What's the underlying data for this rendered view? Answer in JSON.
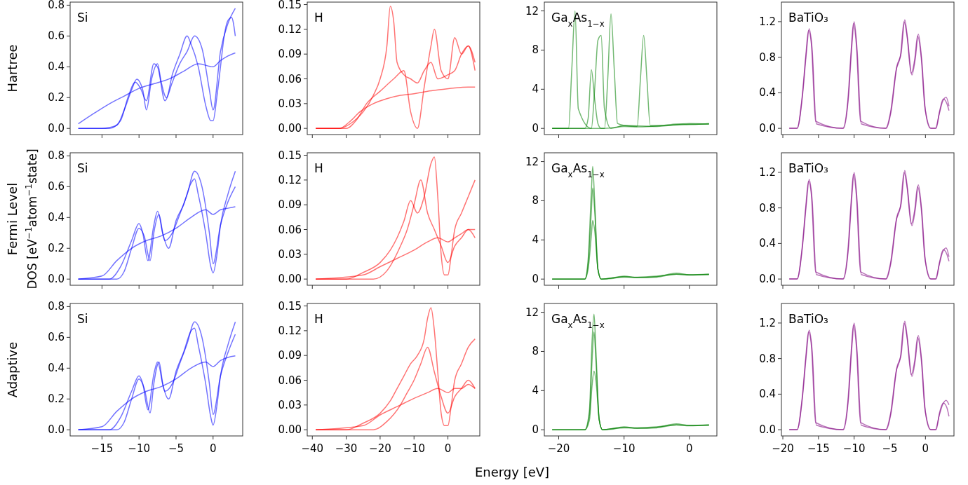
{
  "chart_data": [
    {
      "type": "line",
      "ylabel": "Hartree",
      "annotations": [
        "Si"
      ],
      "tick_labels": "y",
      "xlim": [
        -19.3,
        4.0
      ],
      "xticks": [
        -15,
        -10,
        -5,
        0
      ],
      "ylim": [
        -0.04,
        0.82
      ],
      "yticks": [
        {
          "value": 0,
          "label": "0.0"
        },
        {
          "value": 0.2,
          "label": "0.2"
        },
        {
          "value": 0.4,
          "label": "0.4"
        },
        {
          "value": 0.6,
          "label": "0.6"
        },
        {
          "value": 0.8,
          "label": "0.8"
        }
      ],
      "series": [
        {
          "color": "#0000ff",
          "x": [
            -18.2,
            -15,
            -13,
            -12,
            -11,
            -10.3,
            -9.5,
            -9,
            -8.3,
            -7.5,
            -7,
            -6.3,
            -5.5,
            -4.5,
            -3.5,
            -3,
            -2,
            -1,
            -0.3,
            0,
            0.5,
            1,
            1.5,
            2,
            2.5,
            3
          ],
          "values": [
            0,
            0,
            0.02,
            0.12,
            0.25,
            0.32,
            0.25,
            0.12,
            0.32,
            0.42,
            0.3,
            0.2,
            0.35,
            0.48,
            0.6,
            0.55,
            0.4,
            0.15,
            0.05,
            0.05,
            0.2,
            0.4,
            0.6,
            0.7,
            0.72,
            0.6
          ]
        },
        {
          "color": "#0000ff",
          "x": [
            -18.2,
            -16,
            -14,
            -12,
            -10,
            -8,
            -6,
            -4,
            -2,
            0,
            1,
            2,
            3
          ],
          "values": [
            0.03,
            0.1,
            0.16,
            0.21,
            0.26,
            0.29,
            0.32,
            0.37,
            0.42,
            0.4,
            0.44,
            0.47,
            0.49
          ]
        },
        {
          "color": "#0000ff",
          "x": [
            -18.2,
            -14,
            -12.5,
            -11.5,
            -10.5,
            -9.8,
            -9,
            -8,
            -7.5,
            -6.5,
            -5.5,
            -4.5,
            -3.5,
            -2.5,
            -1.5,
            -0.5,
            0,
            1,
            2,
            3
          ],
          "values": [
            0,
            0,
            0.05,
            0.2,
            0.3,
            0.26,
            0.18,
            0.42,
            0.4,
            0.18,
            0.3,
            0.42,
            0.5,
            0.6,
            0.52,
            0.25,
            0.12,
            0.5,
            0.68,
            0.78
          ]
        }
      ]
    },
    {
      "type": "line",
      "annotations": [
        "H"
      ],
      "tick_labels": "y",
      "xlim": [
        -41.5,
        9.4
      ],
      "xticks": [
        -40,
        -30,
        -20,
        -10,
        0
      ],
      "ylim": [
        -0.0075,
        0.153
      ],
      "yticks": [
        {
          "value": 0,
          "label": "0.00"
        },
        {
          "value": 0.03,
          "label": "0.03"
        },
        {
          "value": 0.06,
          "label": "0.06"
        },
        {
          "value": 0.09,
          "label": "0.09"
        },
        {
          "value": 0.12,
          "label": "0.12"
        },
        {
          "value": 0.15,
          "label": "0.15"
        }
      ],
      "series": [
        {
          "color": "#ff0000",
          "x": [
            -39,
            -32,
            -28,
            -25,
            -22,
            -20,
            -18,
            -17,
            -16,
            -15,
            -13,
            -11,
            -9,
            -7,
            -5,
            -3,
            0,
            2,
            4,
            6,
            8
          ],
          "values": [
            0,
            0,
            0.008,
            0.02,
            0.04,
            0.06,
            0.1,
            0.148,
            0.13,
            0.08,
            0.065,
            0.06,
            0.055,
            0.07,
            0.08,
            0.06,
            0.065,
            0.07,
            0.09,
            0.1,
            0.08
          ]
        },
        {
          "color": "#ff0000",
          "x": [
            -39,
            -32,
            -29,
            -26,
            -22,
            -18,
            -14,
            -10,
            -6,
            -2,
            2,
            6,
            8
          ],
          "values": [
            0,
            0,
            0.008,
            0.02,
            0.03,
            0.036,
            0.04,
            0.042,
            0.045,
            0.047,
            0.049,
            0.05,
            0.05
          ]
        },
        {
          "color": "#ff0000",
          "x": [
            -39,
            -30,
            -27,
            -24,
            -20,
            -16,
            -13,
            -11,
            -9,
            -7,
            -5,
            -4,
            -2,
            0,
            2,
            4,
            6,
            8
          ],
          "values": [
            0,
            0,
            0.01,
            0.03,
            0.045,
            0.06,
            0.07,
            0.02,
            0,
            0.05,
            0.1,
            0.12,
            0.07,
            0.06,
            0.11,
            0.09,
            0.1,
            0.07
          ]
        }
      ]
    },
    {
      "type": "line",
      "annotations": [
        "Ga$_{x}$As$_{1−x}$"
      ],
      "tick_labels": "y",
      "xlim": [
        -22.2,
        4.2
      ],
      "xticks": [
        -20,
        -10,
        0
      ],
      "ylim": [
        -0.63,
        12.9
      ],
      "yticks": [
        0,
        4,
        8,
        12
      ],
      "series": [
        {
          "color": "#008000",
          "x": [
            -21,
            -16,
            -15.5,
            -15,
            -14.5,
            -14,
            -13.5,
            -13,
            -12,
            -10,
            -8,
            -6,
            -4,
            -2,
            0,
            2,
            3
          ],
          "values": [
            0,
            0,
            1,
            6,
            3,
            0.5,
            0,
            0,
            0.05,
            0.2,
            0.15,
            0.2,
            0.3,
            0.45,
            0.4,
            0.45,
            0.5
          ]
        },
        {
          "color": "#008000",
          "x": [
            -21,
            -18.5,
            -18,
            -17.5,
            -17,
            -15,
            -14.5,
            -14,
            -13.5,
            -13,
            -12,
            -10,
            -5,
            0,
            3
          ],
          "values": [
            0,
            0,
            6,
            12,
            2,
            0,
            4,
            9,
            9.5,
            2,
            0,
            0.3,
            0.2,
            0.5,
            0.45
          ]
        },
        {
          "color": "#008000",
          "x": [
            -21,
            -13,
            -12.5,
            -12,
            -11.5,
            -11,
            -10,
            -8,
            -7.5,
            -7,
            -6.5,
            -6,
            -4,
            0,
            3
          ],
          "values": [
            0,
            0,
            5,
            11.7,
            6,
            0.5,
            0.3,
            0.2,
            5,
            9.5,
            5,
            0.3,
            0.3,
            0.4,
            0.45
          ]
        }
      ]
    },
    {
      "type": "line",
      "annotations": [
        "BaTiO₃"
      ],
      "tick_labels": "y",
      "xlim": [
        -20.2,
        4.0
      ],
      "xticks": [
        -20,
        -15,
        -10,
        -5,
        0
      ],
      "ylim": [
        -0.07,
        1.42
      ],
      "yticks": [
        {
          "value": 0,
          "label": "0.0"
        },
        {
          "value": 0.4,
          "label": "0.4"
        },
        {
          "value": 0.8,
          "label": "0.8"
        },
        {
          "value": 1.2,
          "label": "1.2"
        }
      ],
      "series": [
        {
          "color": "#800080",
          "x": [
            -19.1,
            -18,
            -17.2,
            -16.7,
            -16.3,
            -15.9,
            -15.3,
            -11.5,
            -10.8,
            -10.3,
            -10,
            -9.6,
            -9,
            -5.5,
            -4.8,
            -4,
            -3.4,
            -2.9,
            -2.5,
            -1.9,
            -1.4,
            -1,
            -0.5,
            0,
            0.8,
            1.5,
            2,
            2.5,
            3,
            3.3
          ],
          "values": [
            0,
            0,
            0.4,
            0.85,
            1.12,
            0.9,
            0.05,
            0,
            0.35,
            0.95,
            1.2,
            0.9,
            0.05,
            0,
            0.2,
            0.7,
            0.85,
            1.22,
            1.0,
            0.6,
            0.8,
            1.06,
            0.75,
            0.2,
            0,
            0,
            0.2,
            0.33,
            0.28,
            0.2
          ]
        },
        {
          "color": "#800080",
          "x": [
            -19.1,
            -18,
            -17.3,
            -16.8,
            -16.4,
            -16,
            -15.4,
            -11.6,
            -10.9,
            -10.4,
            -10.1,
            -9.7,
            -9.1,
            -5.6,
            -4.9,
            -4.1,
            -3.5,
            -3,
            -2.6,
            -2,
            -1.5,
            -1.1,
            -0.6,
            -0.1,
            0.7,
            1.4,
            1.9,
            2.4,
            2.9,
            3.3
          ],
          "values": [
            0,
            0,
            0.35,
            0.8,
            1.1,
            0.95,
            0.08,
            0,
            0.3,
            0.9,
            1.18,
            0.95,
            0.08,
            0,
            0.18,
            0.66,
            0.82,
            1.2,
            1.05,
            0.62,
            0.78,
            1.04,
            0.8,
            0.25,
            0,
            0,
            0.15,
            0.3,
            0.35,
            0.25
          ]
        }
      ]
    },
    {
      "type": "line",
      "ylabel": "Fermi Level",
      "annotations": [
        "Si",
        "DOS [eV$^{−1}$atom$^{−1}$state]"
      ],
      "tick_labels": "y",
      "xlim": [
        -19.3,
        4.0
      ],
      "xticks": [
        -15,
        -10,
        -5,
        0
      ],
      "ylim": [
        -0.04,
        0.82
      ],
      "yticks": [
        {
          "value": 0,
          "label": "0.0"
        },
        {
          "value": 0.2,
          "label": "0.2"
        },
        {
          "value": 0.4,
          "label": "0.4"
        },
        {
          "value": 0.6,
          "label": "0.6"
        },
        {
          "value": 0.8,
          "label": "0.8"
        }
      ],
      "series": [
        {
          "color": "#0000ff",
          "x": [
            -18.2,
            -13,
            -12,
            -11,
            -10,
            -9.3,
            -8.5,
            -8,
            -7.3,
            -6.8,
            -6,
            -5,
            -4,
            -3,
            -2.5,
            -2,
            -1,
            -0.3,
            0,
            0.5,
            1,
            2,
            3
          ],
          "values": [
            0,
            0,
            0.05,
            0.2,
            0.33,
            0.28,
            0.12,
            0.3,
            0.42,
            0.3,
            0.2,
            0.38,
            0.48,
            0.62,
            0.65,
            0.55,
            0.3,
            0.08,
            0.04,
            0.15,
            0.35,
            0.55,
            0.7
          ]
        },
        {
          "color": "#0000ff",
          "x": [
            -18.2,
            -15,
            -13,
            -11,
            -9,
            -7,
            -5,
            -3,
            -1,
            0,
            1,
            2,
            3
          ],
          "values": [
            0,
            0.02,
            0.12,
            0.2,
            0.25,
            0.28,
            0.33,
            0.4,
            0.45,
            0.42,
            0.45,
            0.46,
            0.47
          ]
        },
        {
          "color": "#0000ff",
          "x": [
            -18.2,
            -14,
            -12.5,
            -11,
            -10,
            -9.5,
            -8.8,
            -8,
            -7.5,
            -6.5,
            -5.5,
            -4.5,
            -3.5,
            -2.5,
            -1.5,
            -0.5,
            0,
            1,
            2,
            3
          ],
          "values": [
            0,
            0,
            0.08,
            0.25,
            0.36,
            0.3,
            0.12,
            0.35,
            0.44,
            0.25,
            0.3,
            0.42,
            0.55,
            0.7,
            0.6,
            0.3,
            0.1,
            0.35,
            0.5,
            0.6
          ]
        }
      ]
    },
    {
      "type": "line",
      "annotations": [
        "H"
      ],
      "tick_labels": "y",
      "xlim": [
        -41.5,
        9.4
      ],
      "xticks": [
        -40,
        -30,
        -20,
        -10,
        0
      ],
      "ylim": [
        -0.0075,
        0.153
      ],
      "yticks": [
        {
          "value": 0,
          "label": "0.00"
        },
        {
          "value": 0.03,
          "label": "0.03"
        },
        {
          "value": 0.06,
          "label": "0.06"
        },
        {
          "value": 0.09,
          "label": "0.09"
        },
        {
          "value": 0.12,
          "label": "0.12"
        },
        {
          "value": 0.15,
          "label": "0.15"
        }
      ],
      "series": [
        {
          "color": "#ff0000",
          "x": [
            -39,
            -30,
            -25,
            -20,
            -17,
            -15,
            -13,
            -11,
            -9,
            -7,
            -5,
            -4,
            -3,
            -2,
            -1,
            0,
            1,
            2,
            4,
            6,
            8
          ],
          "values": [
            0,
            0,
            0.008,
            0.02,
            0.035,
            0.05,
            0.07,
            0.095,
            0.08,
            0.1,
            0.14,
            0.148,
            0.1,
            0.03,
            0.005,
            0.005,
            0.03,
            0.06,
            0.08,
            0.1,
            0.12
          ]
        },
        {
          "color": "#ff0000",
          "x": [
            -39,
            -25,
            -20,
            -15,
            -10,
            -6,
            -3,
            0,
            2,
            4,
            6,
            8
          ],
          "values": [
            0,
            0.005,
            0.015,
            0.025,
            0.035,
            0.045,
            0.05,
            0.045,
            0.05,
            0.055,
            0.06,
            0.06
          ]
        },
        {
          "color": "#ff0000",
          "x": [
            -39,
            -22,
            -18,
            -14,
            -12,
            -10,
            -8,
            -6,
            -4,
            -2,
            0,
            2,
            4,
            6,
            8
          ],
          "values": [
            0,
            0,
            0.01,
            0.04,
            0.06,
            0.09,
            0.12,
            0.08,
            0.06,
            0.04,
            0.02,
            0.04,
            0.05,
            0.06,
            0.05
          ]
        }
      ]
    },
    {
      "type": "line",
      "annotations": [
        "Ga$_{x}$As$_{1−x}$"
      ],
      "tick_labels": "y",
      "xlim": [
        -22.2,
        4.2
      ],
      "xticks": [
        -20,
        -10,
        0
      ],
      "ylim": [
        -0.63,
        12.9
      ],
      "yticks": [
        0,
        4,
        8,
        12
      ],
      "series": [
        {
          "color": "#008000",
          "x": [
            -21,
            -16,
            -15.5,
            -15,
            -14.8,
            -14.5,
            -14,
            -13.5,
            -12,
            -10,
            -8,
            -5,
            -2,
            0,
            3
          ],
          "values": [
            0,
            0,
            2,
            9,
            11.5,
            8,
            1,
            0,
            0.1,
            0.3,
            0.15,
            0.2,
            0.5,
            0.45,
            0.5
          ]
        },
        {
          "color": "#008000",
          "x": [
            -21,
            -16,
            -15.5,
            -15,
            -14.8,
            -14.5,
            -14,
            -13.5,
            -12,
            -10,
            -8,
            -5,
            -2,
            0,
            3
          ],
          "values": [
            0,
            0,
            1.5,
            7,
            9.3,
            7,
            1,
            0,
            0.1,
            0.2,
            0.2,
            0.3,
            0.5,
            0.4,
            0.5
          ]
        },
        {
          "color": "#008000",
          "x": [
            -21,
            -16,
            -15.5,
            -15,
            -14.8,
            -14.5,
            -14,
            -13.5,
            -12,
            -10,
            -8,
            -5,
            -2,
            0,
            3
          ],
          "values": [
            0,
            0,
            1,
            4.5,
            6,
            5,
            1,
            0,
            0.05,
            0.25,
            0.15,
            0.25,
            0.6,
            0.45,
            0.45
          ]
        }
      ]
    },
    {
      "type": "line",
      "annotations": [
        "BaTiO₃"
      ],
      "tick_labels": "y",
      "xlim": [
        -20.2,
        4.0
      ],
      "xticks": [
        -20,
        -15,
        -10,
        -5,
        0
      ],
      "ylim": [
        -0.07,
        1.42
      ],
      "yticks": [
        {
          "value": 0,
          "label": "0.0"
        },
        {
          "value": 0.4,
          "label": "0.4"
        },
        {
          "value": 0.8,
          "label": "0.8"
        },
        {
          "value": 1.2,
          "label": "1.2"
        }
      ],
      "series": [
        {
          "color": "#800080",
          "x": [
            -19.1,
            -18,
            -17.2,
            -16.7,
            -16.3,
            -15.9,
            -15.3,
            -11.5,
            -10.8,
            -10.3,
            -10,
            -9.6,
            -9,
            -5.5,
            -4.8,
            -4,
            -3.4,
            -2.9,
            -2.5,
            -1.9,
            -1.4,
            -1,
            -0.5,
            0,
            0.8,
            1.5,
            2,
            2.5,
            3,
            3.3
          ],
          "values": [
            0,
            0,
            0.4,
            0.85,
            1.12,
            0.9,
            0.05,
            0,
            0.35,
            0.95,
            1.2,
            0.9,
            0.05,
            0,
            0.2,
            0.7,
            0.85,
            1.22,
            1.0,
            0.6,
            0.8,
            1.06,
            0.75,
            0.2,
            0,
            0,
            0.2,
            0.33,
            0.28,
            0.2
          ]
        },
        {
          "color": "#800080",
          "x": [
            -19.1,
            -18,
            -17.3,
            -16.8,
            -16.4,
            -16,
            -15.4,
            -11.6,
            -10.9,
            -10.4,
            -10.1,
            -9.7,
            -9.1,
            -5.6,
            -4.9,
            -4.1,
            -3.5,
            -3,
            -2.6,
            -2,
            -1.5,
            -1.1,
            -0.6,
            -0.1,
            0.7,
            1.4,
            1.9,
            2.4,
            2.9,
            3.3
          ],
          "values": [
            0,
            0,
            0.35,
            0.8,
            1.1,
            0.95,
            0.08,
            0,
            0.3,
            0.9,
            1.18,
            0.95,
            0.08,
            0,
            0.18,
            0.66,
            0.82,
            1.2,
            1.05,
            0.62,
            0.78,
            1.04,
            0.8,
            0.25,
            0,
            0,
            0.15,
            0.3,
            0.35,
            0.25
          ]
        }
      ]
    },
    {
      "type": "line",
      "ylabel": "Adaptive",
      "annotations": [
        "Si"
      ],
      "xlim": [
        -19.3,
        4.0
      ],
      "xticks": [
        -15,
        -10,
        -5,
        0
      ],
      "ylim": [
        -0.04,
        0.82
      ],
      "yticks": [
        {
          "value": 0,
          "label": "0.0"
        },
        {
          "value": 0.2,
          "label": "0.2"
        },
        {
          "value": 0.4,
          "label": "0.4"
        },
        {
          "value": 0.6,
          "label": "0.6"
        },
        {
          "value": 0.8,
          "label": "0.8"
        }
      ],
      "series": [
        {
          "color": "#0000ff",
          "x": [
            -18.2,
            -13,
            -12,
            -11,
            -10,
            -9.3,
            -8.5,
            -8,
            -7.3,
            -6.8,
            -6,
            -5,
            -4,
            -3,
            -2.5,
            -2,
            -1,
            -0.3,
            0,
            0.5,
            1,
            2,
            3
          ],
          "values": [
            0,
            0,
            0.05,
            0.2,
            0.33,
            0.27,
            0.11,
            0.3,
            0.44,
            0.3,
            0.2,
            0.38,
            0.5,
            0.64,
            0.66,
            0.55,
            0.3,
            0.08,
            0.03,
            0.15,
            0.35,
            0.55,
            0.7
          ]
        },
        {
          "color": "#0000ff",
          "x": [
            -18.2,
            -15,
            -13,
            -11,
            -9,
            -7,
            -5,
            -3,
            -1,
            0,
            1,
            2,
            3
          ],
          "values": [
            0,
            0.02,
            0.12,
            0.2,
            0.25,
            0.28,
            0.33,
            0.4,
            0.44,
            0.41,
            0.45,
            0.47,
            0.48
          ]
        },
        {
          "color": "#0000ff",
          "x": [
            -18.2,
            -14,
            -12.5,
            -11,
            -10,
            -9.5,
            -8.8,
            -8,
            -7.5,
            -6.5,
            -5.5,
            -4.5,
            -3.5,
            -2.5,
            -1.5,
            -0.5,
            0,
            1,
            2,
            3
          ],
          "values": [
            0,
            0,
            0.08,
            0.25,
            0.35,
            0.3,
            0.13,
            0.36,
            0.44,
            0.25,
            0.3,
            0.43,
            0.56,
            0.7,
            0.6,
            0.3,
            0.1,
            0.35,
            0.5,
            0.62
          ]
        }
      ]
    },
    {
      "type": "line",
      "annotations": [
        "H",
        "Energy [eV]"
      ],
      "xlim": [
        -41.5,
        9.4
      ],
      "xticks": [
        -40,
        -30,
        -20,
        -10,
        0
      ],
      "ylim": [
        -0.0075,
        0.153
      ],
      "yticks": [
        {
          "value": 0,
          "label": "0.00"
        },
        {
          "value": 0.03,
          "label": "0.03"
        },
        {
          "value": 0.06,
          "label": "0.06"
        },
        {
          "value": 0.09,
          "label": "0.09"
        },
        {
          "value": 0.12,
          "label": "0.12"
        },
        {
          "value": 0.15,
          "label": "0.15"
        }
      ],
      "series": [
        {
          "color": "#ff0000",
          "x": [
            -39,
            -30,
            -25,
            -20,
            -17,
            -15,
            -13,
            -11,
            -9,
            -7,
            -6,
            -5,
            -4,
            -3,
            -2,
            -1,
            0,
            1,
            2,
            4,
            6,
            8
          ],
          "values": [
            0,
            0,
            0.008,
            0.02,
            0.035,
            0.05,
            0.065,
            0.08,
            0.09,
            0.11,
            0.135,
            0.148,
            0.12,
            0.07,
            0.02,
            0.005,
            0.005,
            0.03,
            0.06,
            0.08,
            0.1,
            0.11
          ]
        },
        {
          "color": "#ff0000",
          "x": [
            -39,
            -25,
            -20,
            -15,
            -10,
            -6,
            -3,
            0,
            2,
            4,
            6,
            8
          ],
          "values": [
            0,
            0.005,
            0.018,
            0.028,
            0.038,
            0.045,
            0.05,
            0.045,
            0.05,
            0.05,
            0.055,
            0.05
          ]
        },
        {
          "color": "#ff0000",
          "x": [
            -39,
            -22,
            -18,
            -14,
            -12,
            -10,
            -8,
            -6,
            -4,
            -2,
            0,
            2,
            4,
            6,
            8
          ],
          "values": [
            0,
            0,
            0.01,
            0.03,
            0.045,
            0.06,
            0.08,
            0.1,
            0.07,
            0.04,
            0.02,
            0.04,
            0.05,
            0.06,
            0.05
          ]
        }
      ]
    },
    {
      "type": "line",
      "annotations": [
        "Ga$_{x}$As$_{1−x}$"
      ],
      "xlim": [
        -22.2,
        4.2
      ],
      "xticks": [
        -20,
        -10,
        0
      ],
      "ylim": [
        -0.63,
        12.9
      ],
      "yticks": [
        0,
        4,
        8,
        12
      ],
      "series": [
        {
          "color": "#008000",
          "x": [
            -21,
            -16,
            -15.3,
            -14.9,
            -14.6,
            -14.3,
            -13.8,
            -13.3,
            -12,
            -10,
            -8,
            -5,
            -2,
            0,
            3
          ],
          "values": [
            0,
            0,
            2,
            9,
            11.8,
            8,
            1,
            0,
            0.1,
            0.3,
            0.15,
            0.2,
            0.5,
            0.45,
            0.5
          ]
        },
        {
          "color": "#008000",
          "x": [
            -21,
            -16,
            -15.3,
            -14.9,
            -14.6,
            -14.3,
            -13.8,
            -13.3,
            -12,
            -10,
            -8,
            -5,
            -2,
            0,
            3
          ],
          "values": [
            0,
            0,
            1.5,
            7,
            10,
            7,
            1,
            0,
            0.1,
            0.2,
            0.2,
            0.3,
            0.5,
            0.4,
            0.5
          ]
        },
        {
          "color": "#008000",
          "x": [
            -21,
            -16,
            -15.3,
            -14.9,
            -14.6,
            -14.3,
            -13.8,
            -13.3,
            -12,
            -10,
            -8,
            -5,
            -2,
            0,
            3
          ],
          "values": [
            0,
            0,
            1,
            4.5,
            6,
            5,
            1,
            0,
            0.05,
            0.25,
            0.15,
            0.25,
            0.6,
            0.45,
            0.45
          ]
        }
      ]
    },
    {
      "type": "line",
      "annotations": [
        "BaTiO₃"
      ],
      "xlim": [
        -20.2,
        4.0
      ],
      "xticks": [
        -20,
        -15,
        -10,
        -5,
        0
      ],
      "ylim": [
        -0.07,
        1.42
      ],
      "yticks": [
        {
          "value": 0,
          "label": "0.0"
        },
        {
          "value": 0.4,
          "label": "0.4"
        },
        {
          "value": 0.8,
          "label": "0.8"
        },
        {
          "value": 1.2,
          "label": "1.2"
        }
      ],
      "series": [
        {
          "color": "#800080",
          "x": [
            -19.1,
            -18,
            -17.2,
            -16.7,
            -16.3,
            -15.9,
            -15.3,
            -11.5,
            -10.8,
            -10.3,
            -10,
            -9.6,
            -9,
            -5.5,
            -4.8,
            -4,
            -3.4,
            -2.9,
            -2.5,
            -1.9,
            -1.4,
            -1,
            -0.5,
            0,
            0.8,
            1.5,
            2,
            2.5,
            3,
            3.3
          ],
          "values": [
            0,
            0,
            0.4,
            0.85,
            1.12,
            0.9,
            0.05,
            0,
            0.35,
            0.95,
            1.2,
            0.9,
            0.05,
            0,
            0.2,
            0.7,
            0.85,
            1.22,
            1.0,
            0.6,
            0.8,
            1.06,
            0.75,
            0.2,
            0,
            0,
            0.2,
            0.3,
            0.25,
            0.15
          ]
        },
        {
          "color": "#800080",
          "x": [
            -19.1,
            -18,
            -17.3,
            -16.8,
            -16.4,
            -16,
            -15.4,
            -11.6,
            -10.9,
            -10.4,
            -10.1,
            -9.7,
            -9.1,
            -5.6,
            -4.9,
            -4.1,
            -3.5,
            -3,
            -2.6,
            -2,
            -1.5,
            -1.1,
            -0.6,
            -0.1,
            0.7,
            1.4,
            1.9,
            2.4,
            2.9,
            3.3
          ],
          "values": [
            0,
            0,
            0.35,
            0.8,
            1.1,
            0.95,
            0.08,
            0,
            0.3,
            0.9,
            1.18,
            0.95,
            0.08,
            0,
            0.18,
            0.66,
            0.82,
            1.2,
            1.05,
            0.62,
            0.78,
            1.04,
            0.8,
            0.25,
            0,
            0,
            0.15,
            0.28,
            0.33,
            0.28
          ]
        }
      ]
    }
  ]
}
